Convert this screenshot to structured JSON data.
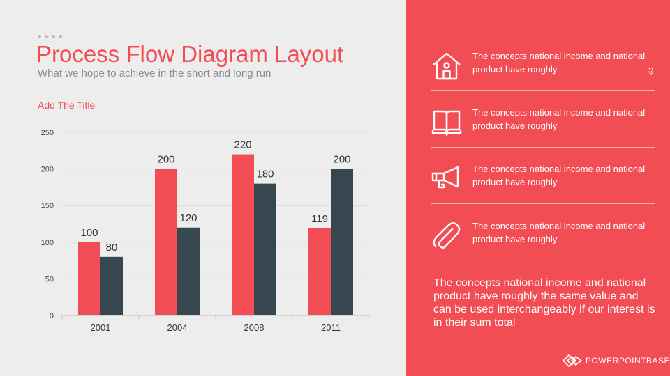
{
  "slide": {
    "title": "Process Flow Diagram Layout",
    "subtitle": "What we hope to achieve in the short and long run",
    "page_number": "22"
  },
  "chart_data": {
    "type": "bar",
    "title": "Add The Title",
    "categories": [
      "2001",
      "2004",
      "2008",
      "2011"
    ],
    "series": [
      {
        "values": [
          100,
          200,
          220,
          119
        ],
        "color": "#f24d55"
      },
      {
        "values": [
          80,
          120,
          180,
          200
        ],
        "color": "#37474f"
      }
    ],
    "ylim": [
      0,
      250
    ],
    "yticks": [
      0,
      50,
      100,
      150,
      200,
      250
    ],
    "grid": true,
    "data_labels": true
  },
  "sidebar": {
    "items": [
      {
        "icon": "house-icon",
        "text": "The concepts national income and national product have roughly"
      },
      {
        "icon": "book-icon",
        "text": "The concepts national income and national product have roughly"
      },
      {
        "icon": "megaphone-icon",
        "text": "The concepts national income and national product have roughly"
      },
      {
        "icon": "paperclip-icon",
        "text": "The concepts national income and national product have roughly"
      }
    ],
    "summary": "The concepts national income and national product have roughly the same value and can be used interchangeably if our interest is in their sum total"
  },
  "brand": {
    "text": "POWERPOINTBASE.COM"
  },
  "colors": {
    "accent": "#f24d55",
    "dark": "#37474f",
    "background": "#ededed"
  }
}
